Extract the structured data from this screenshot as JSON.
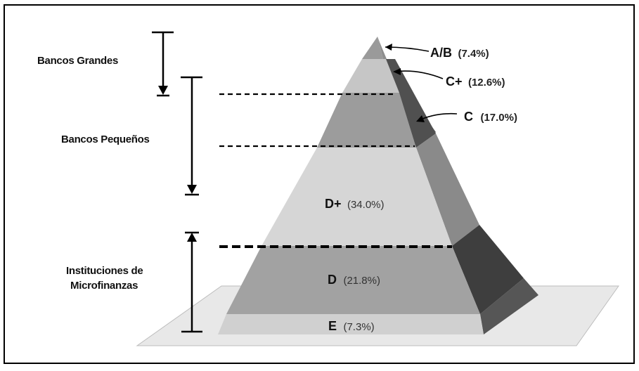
{
  "groups": {
    "large_banks": "Bancos Grandes",
    "small_banks": "Bancos Pequeños",
    "microfinance_line1": "Instituciones de",
    "microfinance_line2": "Microfinanzas"
  },
  "tiers": [
    {
      "id": "ab",
      "label": "A/B",
      "pct": "(7.4%)",
      "value": 7.4
    },
    {
      "id": "cplus",
      "label": "C+",
      "pct": "(12.6%)",
      "value": 12.6
    },
    {
      "id": "c",
      "label": "C",
      "pct": "(17.0%)",
      "value": 17.0
    },
    {
      "id": "dplus",
      "label": "D+",
      "pct": "(34.0%)",
      "value": 34.0
    },
    {
      "id": "d",
      "label": "D",
      "pct": "(21.8%)",
      "value": 21.8
    },
    {
      "id": "e",
      "label": "E",
      "pct": "(7.3%)",
      "value": 7.3
    }
  ],
  "colors": {
    "border": "#000000",
    "platform": "#e8e8e8",
    "front_light": "#d4d4d4",
    "front_mid": "#a8a8a8",
    "front_dark": "#9a9a9a",
    "side_light": "#8a8a8a",
    "side_dark": "#4a4a4a",
    "side_darker": "#3c3c3c"
  }
}
